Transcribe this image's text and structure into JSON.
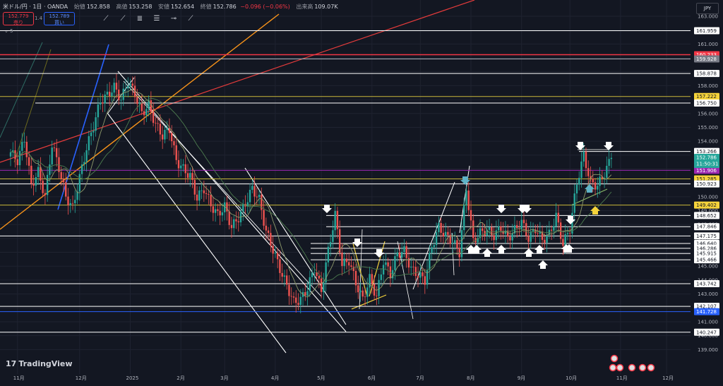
{
  "header": {
    "symbol": "米ドル/円 · 1日 · OANDA",
    "open_label": "始値",
    "open": "152.858",
    "high_label": "高値",
    "high": "153.258",
    "low_label": "安値",
    "low": "152.654",
    "close_label": "終値",
    "close": "152.786",
    "change": "−0.096 (−0.06%)",
    "volume_label": "出来高",
    "volume": "109.07K",
    "sell_price": "152.779",
    "sell_label": "売り",
    "buy_price": "152.789",
    "buy_label": "買い",
    "lot": "1.4",
    "indicator_count": "5"
  },
  "tools": [
    "trend-line-icon",
    "ray-icon",
    "parallel-channel-icon",
    "fib-icon",
    "horizontal-ray-icon",
    "extended-line-icon"
  ],
  "currency": "JPY",
  "logo": "TradingView",
  "chart_data": {
    "type": "candlestick",
    "symbol": "USDJPY",
    "ylim": [
      137.6,
      163.3
    ],
    "y_ticks": [
      "139.000",
      "140.000",
      "141.000",
      "142.000",
      "143.000",
      "144.000",
      "145.000",
      "146.000",
      "147.000",
      "148.000",
      "149.000",
      "150.000",
      "151.000",
      "152.000",
      "153.000",
      "154.000",
      "155.000",
      "156.000",
      "157.000",
      "158.000",
      "159.000",
      "160.000",
      "161.000",
      "162.000",
      "163.000"
    ],
    "x_ticks": [
      "11月",
      "12月",
      "2025",
      "2月",
      "3月",
      "4月",
      "5月",
      "6月",
      "7月",
      "8月",
      "9月",
      "10月",
      "11月",
      "12月"
    ],
    "close_path": [
      [
        0,
        153.2
      ],
      [
        3,
        152.6
      ],
      [
        6,
        154.2
      ],
      [
        9,
        150.8
      ],
      [
        12,
        151.8
      ],
      [
        15,
        150.0
      ],
      [
        18,
        153.8
      ],
      [
        21,
        152.1
      ],
      [
        24,
        150.0
      ],
      [
        27,
        149.2
      ],
      [
        30,
        151.4
      ],
      [
        33,
        153.5
      ],
      [
        36,
        155.1
      ],
      [
        39,
        156.9
      ],
      [
        42,
        157.3
      ],
      [
        45,
        157.9
      ],
      [
        48,
        157.0
      ],
      [
        51,
        158.3
      ],
      [
        54,
        157.4
      ],
      [
        57,
        156.0
      ],
      [
        60,
        156.6
      ],
      [
        63,
        155.2
      ],
      [
        66,
        154.4
      ],
      [
        69,
        154.9
      ],
      [
        72,
        152.6
      ],
      [
        75,
        152.0
      ],
      [
        78,
        151.5
      ],
      [
        81,
        149.9
      ],
      [
        84,
        150.6
      ],
      [
        87,
        149.4
      ],
      [
        90,
        148.7
      ],
      [
        93,
        149.3
      ],
      [
        96,
        147.8
      ],
      [
        99,
        148.5
      ],
      [
        102,
        149.5
      ],
      [
        105,
        150.6
      ],
      [
        108,
        149.8
      ],
      [
        111,
        147.5
      ],
      [
        114,
        146.2
      ],
      [
        117,
        144.8
      ],
      [
        120,
        143.6
      ],
      [
        123,
        142.4
      ],
      [
        126,
        142.6
      ],
      [
        129,
        143.4
      ],
      [
        132,
        144.9
      ],
      [
        135,
        143.2
      ],
      [
        138,
        146.1
      ],
      [
        141,
        148.7
      ],
      [
        144,
        145.1
      ],
      [
        147,
        145.4
      ],
      [
        150,
        143.8
      ],
      [
        153,
        142.6
      ],
      [
        156,
        144.1
      ],
      [
        159,
        142.8
      ],
      [
        162,
        145.4
      ],
      [
        165,
        144.4
      ],
      [
        168,
        145.9
      ],
      [
        171,
        146.1
      ],
      [
        174,
        144.8
      ],
      [
        177,
        144.4
      ],
      [
        180,
        144.0
      ],
      [
        183,
        146.4
      ],
      [
        186,
        147.8
      ],
      [
        189,
        147.2
      ],
      [
        192,
        146.8
      ],
      [
        195,
        146.0
      ],
      [
        198,
        150.6
      ],
      [
        201,
        146.8
      ],
      [
        204,
        147.4
      ],
      [
        207,
        147.6
      ],
      [
        210,
        147.2
      ],
      [
        213,
        147.8
      ],
      [
        216,
        147.0
      ],
      [
        219,
        147.6
      ],
      [
        222,
        148.2
      ],
      [
        225,
        147.0
      ],
      [
        228,
        147.7
      ],
      [
        231,
        146.9
      ],
      [
        234,
        147.3
      ],
      [
        237,
        148.6
      ],
      [
        240,
        146.6
      ],
      [
        243,
        147.7
      ],
      [
        246,
        151.0
      ],
      [
        249,
        153.0
      ],
      [
        252,
        151.0
      ],
      [
        255,
        150.8
      ],
      [
        258,
        151.7
      ],
      [
        261,
        152.8
      ]
    ],
    "horizontal_levels": [
      {
        "value": 161.959,
        "label": "161.959"
      },
      {
        "value": 160.233,
        "label": "160.233"
      },
      {
        "value": 159.928,
        "label": "159.928"
      },
      {
        "value": 158.878,
        "label": "158.878"
      },
      {
        "value": 157.222,
        "label": "157.222"
      },
      {
        "value": 156.75,
        "label": "156.750"
      },
      {
        "value": 153.266,
        "label": "153.266"
      },
      {
        "value": 152.786,
        "label": "152.786"
      },
      {
        "value": 151.906,
        "label": "151.906"
      },
      {
        "value": 151.285,
        "label": "151.285"
      },
      {
        "value": 150.923,
        "label": "150.923"
      },
      {
        "value": 149.402,
        "label": "149.402"
      },
      {
        "value": 148.652,
        "label": "148.652"
      },
      {
        "value": 147.846,
        "label": "147.846"
      },
      {
        "value": 147.175,
        "label": "147.175"
      },
      {
        "value": 146.64,
        "label": "146.640"
      },
      {
        "value": 146.286,
        "label": "146.286"
      },
      {
        "value": 145.915,
        "label": "145.915"
      },
      {
        "value": 145.466,
        "label": "145.466"
      },
      {
        "value": 143.742,
        "label": "143.742"
      },
      {
        "value": 142.107,
        "label": "142.107"
      },
      {
        "value": 141.728,
        "label": "141.728"
      },
      {
        "value": 140.247,
        "label": "140.247"
      }
    ],
    "price_tag": {
      "value": "152.786",
      "countdown": "11:50:31"
    },
    "colors": {
      "up": "#26a69a",
      "down": "#ef5350",
      "background": "#131722"
    }
  }
}
